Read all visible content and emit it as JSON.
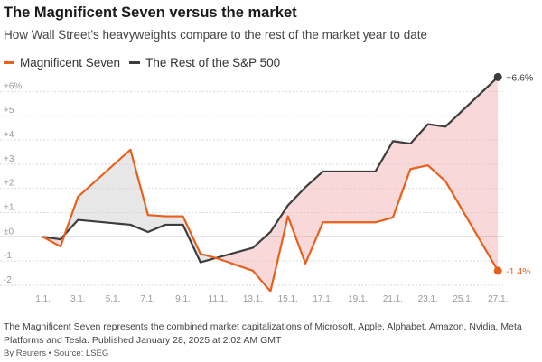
{
  "title": "The Magnificent Seven versus the market",
  "subtitle": "How Wall Street’s heavyweights compare to the rest of the market year to date",
  "footnote": "The Magnificent Seven represents the combined market capitalizations of Microsoft, Apple, Alphabet, Amazon, Nvidia, Meta Platforms and Tesla. Published January 28, 2025 at 2:02 AM GMT",
  "source": "By Reuters • Source: LSEG",
  "colors": {
    "mag7": "#e8601c",
    "rest": "#3d3d3d",
    "fill_below": "#f4b8bc",
    "fill_above": "#d4d4d4",
    "grid": "#d9d9d9",
    "zero": "#333333"
  },
  "chart_data": {
    "type": "line",
    "x_unit": "day of January 2025",
    "x_ticks": [
      1,
      3,
      5,
      7,
      9,
      11,
      13,
      15,
      17,
      19,
      21,
      23,
      25,
      27
    ],
    "x_tick_labels": [
      "1.1.",
      "3.1.",
      "5.1.",
      "7.1.",
      "9.1.",
      "11.1.",
      "13.1.",
      "15.1.",
      "17.1.",
      "19.1.",
      "21.1.",
      "23.1.",
      "25.1.",
      "27.1."
    ],
    "ylim": [
      -2,
      6.5
    ],
    "y_ticks": [
      -2,
      -1,
      0,
      1,
      2,
      3,
      4,
      5,
      6
    ],
    "y_tick_labels": [
      "-2",
      "-1",
      "±0",
      "+1",
      "+2",
      "+3",
      "+4",
      "+5",
      "+6%"
    ],
    "grid": true,
    "legend_position": "top-left",
    "series": [
      {
        "name": "Magnificent Seven",
        "color_key": "mag7",
        "end_label": "-1.4%",
        "points": [
          [
            1,
            0
          ],
          [
            2,
            -0.4
          ],
          [
            3,
            1.65
          ],
          [
            6,
            3.6
          ],
          [
            7,
            0.9
          ],
          [
            8,
            0.85
          ],
          [
            9,
            0.85
          ],
          [
            10,
            -0.7
          ],
          [
            11,
            -0.9
          ],
          [
            13,
            -1.4
          ],
          [
            14,
            -2.25
          ],
          [
            15,
            0.85
          ],
          [
            16,
            -1.1
          ],
          [
            17,
            0.6
          ],
          [
            18,
            0.6
          ],
          [
            19,
            0.6
          ],
          [
            20,
            0.6
          ],
          [
            21,
            0.8
          ],
          [
            22,
            2.8
          ],
          [
            23,
            2.95
          ],
          [
            24,
            2.3
          ],
          [
            27,
            -1.4
          ]
        ]
      },
      {
        "name": "The Rest of the S&P 500",
        "color_key": "rest",
        "end_label": "+6.6%",
        "points": [
          [
            1,
            0
          ],
          [
            2,
            -0.1
          ],
          [
            3,
            0.7
          ],
          [
            6,
            0.5
          ],
          [
            7,
            0.2
          ],
          [
            8,
            0.5
          ],
          [
            9,
            0.5
          ],
          [
            10,
            -1.05
          ],
          [
            11,
            -0.85
          ],
          [
            13,
            -0.45
          ],
          [
            14,
            0.2
          ],
          [
            15,
            1.3
          ],
          [
            16,
            2.05
          ],
          [
            17,
            2.7
          ],
          [
            18,
            2.7
          ],
          [
            19,
            2.7
          ],
          [
            20,
            2.7
          ],
          [
            21,
            3.95
          ],
          [
            22,
            3.85
          ],
          [
            23,
            4.65
          ],
          [
            24,
            4.55
          ],
          [
            27,
            6.6
          ]
        ]
      }
    ]
  }
}
